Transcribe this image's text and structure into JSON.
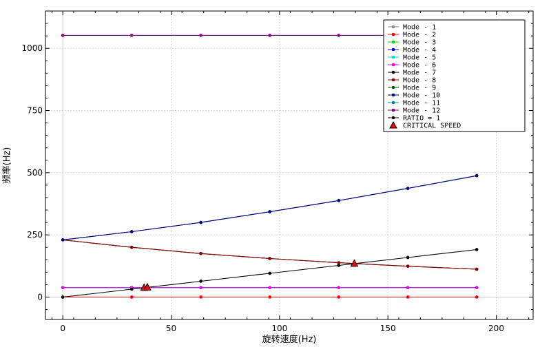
{
  "chart_data": {
    "type": "line",
    "xlabel": "旋转速度(Hz)",
    "ylabel": "频率(Hz)",
    "xlim": [
      -8,
      217
    ],
    "ylim": [
      -90,
      1150
    ],
    "x_ticks": [
      0,
      50,
      100,
      150,
      200
    ],
    "y_ticks": [
      0,
      250,
      500,
      750,
      1000
    ],
    "grid": true,
    "legend_position": "top-right",
    "x": [
      0,
      31.8,
      63.7,
      95.5,
      127.3,
      159.2,
      191
    ],
    "series": [
      {
        "name": "Mode - 1",
        "color": "#8c8c8c",
        "values": [
          0,
          0,
          0,
          0,
          0,
          0,
          0
        ]
      },
      {
        "name": "Mode - 2",
        "color": "#ff0000",
        "values": [
          0,
          0,
          0,
          0,
          0,
          0,
          0
        ]
      },
      {
        "name": "Mode - 3",
        "color": "#00dd00",
        "values": [
          38,
          38,
          38,
          38,
          38,
          38,
          38
        ]
      },
      {
        "name": "Mode - 4",
        "color": "#0000ff",
        "values": [
          38,
          38,
          38,
          38,
          38,
          38,
          38
        ]
      },
      {
        "name": "Mode - 5",
        "color": "#00dddd",
        "values": [
          38,
          38,
          38,
          38,
          38,
          38,
          38
        ]
      },
      {
        "name": "Mode - 6",
        "color": "#ee00ee",
        "values": [
          38,
          38,
          38,
          38,
          38,
          38,
          38
        ]
      },
      {
        "name": "Mode - 7",
        "color": "#000000",
        "values": [
          230,
          200,
          175,
          155,
          138,
          124,
          112
        ]
      },
      {
        "name": "Mode - 8",
        "color": "#8b0000",
        "values": [
          230,
          200,
          175,
          155,
          138,
          124,
          112
        ]
      },
      {
        "name": "Mode - 9",
        "color": "#006400",
        "values": [
          230,
          263,
          300,
          343,
          388,
          437,
          488
        ]
      },
      {
        "name": "Mode - 10",
        "color": "#00008b",
        "values": [
          230,
          263,
          300,
          343,
          388,
          437,
          488
        ]
      },
      {
        "name": "Mode - 11",
        "color": "#008b8b",
        "values": [
          1052,
          1052,
          1052,
          1052,
          1052,
          1052,
          1052
        ]
      },
      {
        "name": "Mode - 12",
        "color": "#8b008b",
        "values": [
          1052,
          1052,
          1052,
          1052,
          1052,
          1052,
          1052
        ]
      },
      {
        "name": "RATIO = 1",
        "color": "#000000",
        "values": [
          0,
          31.8,
          63.7,
          95.5,
          127.3,
          159.2,
          191
        ]
      }
    ],
    "critical_speed": {
      "name": "CRITICAL SPEED",
      "color": "#ff0000",
      "points": [
        [
          37.5,
          37.5
        ],
        [
          39,
          39
        ],
        [
          134.5,
          134.5
        ]
      ]
    }
  }
}
